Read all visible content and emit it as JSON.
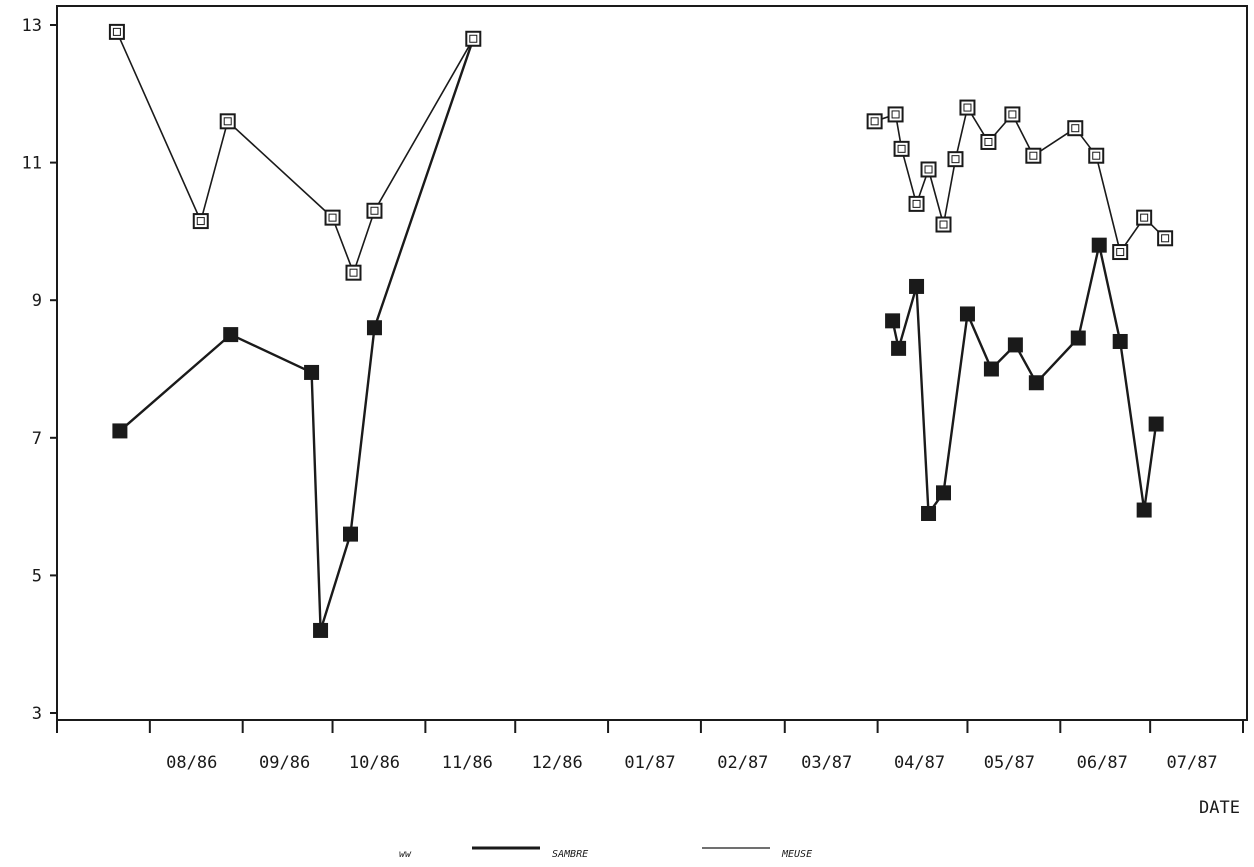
{
  "chart_data": {
    "type": "line",
    "title": "",
    "xlabel": "DATE",
    "ylabel": "",
    "x_axis": {
      "type": "date",
      "ticks": [
        "08/86",
        "09/86",
        "10/86",
        "11/86",
        "12/86",
        "01/87",
        "02/87",
        "03/87",
        "04/87",
        "05/87",
        "06/87",
        "07/87"
      ],
      "range": [
        "1986-07-02",
        "1987-07-31"
      ]
    },
    "y_axis": {
      "ticks": [
        3,
        5,
        7,
        9,
        11,
        13
      ],
      "range": [
        3,
        13
      ]
    },
    "grid": false,
    "legend": {
      "placement": "bottom",
      "label": "ww",
      "items": [
        {
          "name": "SAMBRE",
          "line": "thick"
        },
        {
          "name": "MEUSE",
          "line": "thin"
        }
      ]
    },
    "series": [
      {
        "name": "SAMBRE",
        "marker": "filled-square",
        "segments": [
          [
            {
              "x": "1986-07-22",
              "y": 7.1
            },
            {
              "x": "1986-08-28",
              "y": 8.5
            },
            {
              "x": "1986-09-24",
              "y": 7.95
            },
            {
              "x": "1986-09-27",
              "y": 4.2
            },
            {
              "x": "1986-10-07",
              "y": 5.6
            },
            {
              "x": "1986-10-15",
              "y": 8.6
            },
            {
              "x": "1986-11-17",
              "y": 12.8
            }
          ],
          [
            {
              "x": "1987-04-06",
              "y": 8.7
            },
            {
              "x": "1987-04-08",
              "y": 8.3
            },
            {
              "x": "1987-04-14",
              "y": 9.2
            },
            {
              "x": "1987-04-18",
              "y": 5.9
            },
            {
              "x": "1987-04-23",
              "y": 6.2
            },
            {
              "x": "1987-05-01",
              "y": 8.8
            },
            {
              "x": "1987-05-09",
              "y": 8.0
            },
            {
              "x": "1987-05-17",
              "y": 8.35
            },
            {
              "x": "1987-05-24",
              "y": 7.8
            },
            {
              "x": "1987-06-07",
              "y": 8.45
            },
            {
              "x": "1987-06-14",
              "y": 9.8
            },
            {
              "x": "1987-06-21",
              "y": 8.4
            },
            {
              "x": "1987-06-29",
              "y": 5.95
            },
            {
              "x": "1987-07-03",
              "y": 7.2
            }
          ]
        ]
      },
      {
        "name": "MEUSE",
        "marker": "open-square",
        "segments": [
          [
            {
              "x": "1986-07-21",
              "y": 12.9
            },
            {
              "x": "1986-08-18",
              "y": 10.15
            },
            {
              "x": "1986-08-27",
              "y": 11.6
            },
            {
              "x": "1986-10-01",
              "y": 10.2
            },
            {
              "x": "1986-10-08",
              "y": 9.4
            },
            {
              "x": "1986-10-15",
              "y": 10.3
            },
            {
              "x": "1986-11-17",
              "y": 12.8
            }
          ],
          [
            {
              "x": "1987-03-31",
              "y": 11.6
            },
            {
              "x": "1987-04-07",
              "y": 11.7
            },
            {
              "x": "1987-04-09",
              "y": 11.2
            },
            {
              "x": "1987-04-14",
              "y": 10.4
            },
            {
              "x": "1987-04-18",
              "y": 10.9
            },
            {
              "x": "1987-04-23",
              "y": 10.1
            },
            {
              "x": "1987-04-27",
              "y": 11.05
            },
            {
              "x": "1987-05-01",
              "y": 11.8
            },
            {
              "x": "1987-05-08",
              "y": 11.3
            },
            {
              "x": "1987-05-16",
              "y": 11.7
            },
            {
              "x": "1987-05-23",
              "y": 11.1
            },
            {
              "x": "1987-06-06",
              "y": 11.5
            },
            {
              "x": "1987-06-13",
              "y": 11.1
            },
            {
              "x": "1987-06-21",
              "y": 9.7
            },
            {
              "x": "1987-06-29",
              "y": 10.2
            },
            {
              "x": "1987-07-06",
              "y": 9.9
            }
          ]
        ]
      }
    ]
  }
}
